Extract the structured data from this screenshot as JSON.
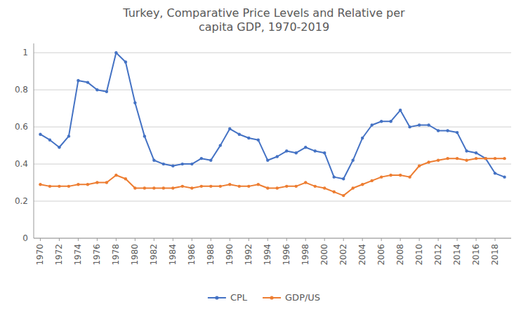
{
  "chart_data": {
    "type": "line",
    "title": "Turkey, Comparative Price Levels and Relative per\ncapita GDP, 1970-2019",
    "x": [
      1970,
      1971,
      1972,
      1973,
      1974,
      1975,
      1976,
      1977,
      1978,
      1979,
      1980,
      1981,
      1982,
      1983,
      1984,
      1985,
      1986,
      1987,
      1988,
      1989,
      1990,
      1991,
      1992,
      1993,
      1994,
      1995,
      1996,
      1997,
      1998,
      1999,
      2000,
      2001,
      2002,
      2003,
      2004,
      2005,
      2006,
      2007,
      2008,
      2009,
      2010,
      2011,
      2012,
      2013,
      2014,
      2015,
      2016,
      2017,
      2018,
      2019
    ],
    "series": [
      {
        "name": "CPL",
        "color": "#4472C4",
        "values": [
          0.56,
          0.53,
          0.49,
          0.55,
          0.85,
          0.84,
          0.8,
          0.79,
          1.0,
          0.95,
          0.73,
          0.55,
          0.42,
          0.4,
          0.39,
          0.4,
          0.4,
          0.43,
          0.42,
          0.5,
          0.59,
          0.56,
          0.54,
          0.53,
          0.42,
          0.44,
          0.47,
          0.46,
          0.49,
          0.47,
          0.46,
          0.33,
          0.32,
          0.42,
          0.54,
          0.61,
          0.63,
          0.63,
          0.69,
          0.6,
          0.61,
          0.61,
          0.58,
          0.58,
          0.57,
          0.47,
          0.46,
          0.43,
          0.35,
          0.33
        ]
      },
      {
        "name": "GDP/US",
        "color": "#ED7D31",
        "values": [
          0.29,
          0.28,
          0.28,
          0.28,
          0.29,
          0.29,
          0.3,
          0.3,
          0.34,
          0.32,
          0.27,
          0.27,
          0.27,
          0.27,
          0.27,
          0.28,
          0.27,
          0.28,
          0.28,
          0.28,
          0.29,
          0.28,
          0.28,
          0.29,
          0.27,
          0.27,
          0.28,
          0.28,
          0.3,
          0.28,
          0.27,
          0.25,
          0.23,
          0.27,
          0.29,
          0.31,
          0.33,
          0.34,
          0.34,
          0.33,
          0.39,
          0.41,
          0.42,
          0.43,
          0.43,
          0.42,
          0.43,
          0.43,
          0.43,
          0.43
        ]
      }
    ],
    "xlim": [
      1969.3,
      2019.7
    ],
    "xticks": [
      1970,
      1972,
      1974,
      1976,
      1978,
      1980,
      1982,
      1984,
      1986,
      1988,
      1990,
      1992,
      1994,
      1996,
      1998,
      2000,
      2002,
      2004,
      2006,
      2008,
      2010,
      2012,
      2014,
      2016,
      2018
    ],
    "ylim": [
      0,
      1.05
    ],
    "yticks": [
      0,
      0.2,
      0.4,
      0.6,
      0.8,
      1
    ],
    "grid": true,
    "legend": "bottom",
    "marker": "circle"
  }
}
